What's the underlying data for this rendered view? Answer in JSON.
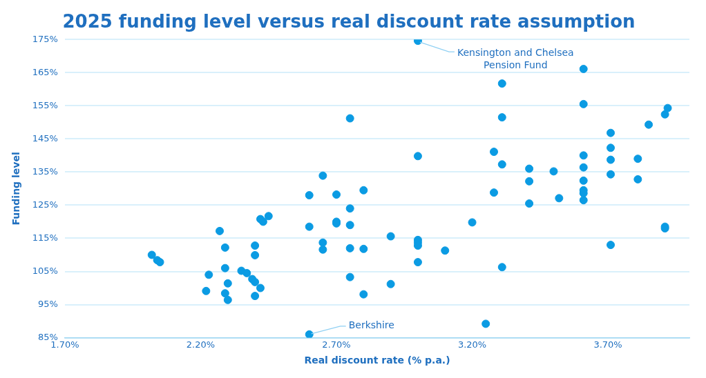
{
  "chart_data": {
    "type": "scatter",
    "title": "2025 funding level versus real discount rate assumption",
    "xlabel": "Real discount rate (% p.a.)",
    "ylabel": "Funding level",
    "xlim": [
      1.7,
      4.0
    ],
    "xticks": [
      {
        "value": 1.7,
        "label": "1.70%"
      },
      {
        "value": 2.2,
        "label": "2.20%"
      },
      {
        "value": 2.7,
        "label": "2.70%"
      },
      {
        "value": 3.2,
        "label": "3.20%"
      },
      {
        "value": 3.7,
        "label": "3.70%"
      }
    ],
    "ylim": [
      85,
      175
    ],
    "yticks": [
      {
        "value": 85,
        "label": "85%"
      },
      {
        "value": 95,
        "label": "95%"
      },
      {
        "value": 105,
        "label": "105%"
      },
      {
        "value": 115,
        "label": "115%"
      },
      {
        "value": 125,
        "label": "125%"
      },
      {
        "value": 135,
        "label": "135%"
      },
      {
        "value": 145,
        "label": "145%"
      },
      {
        "value": 155,
        "label": "155%"
      },
      {
        "value": 165,
        "label": "165%"
      },
      {
        "value": 175,
        "label": "175%"
      }
    ],
    "grid": "y",
    "legend": false,
    "marker": "circle",
    "series": [
      {
        "color": "#0b9be3",
        "x": [
          2.02,
          2.04,
          2.05,
          2.22,
          2.23,
          2.27,
          2.29,
          2.29,
          2.3,
          2.29,
          2.3,
          2.35,
          2.37,
          2.39,
          2.4,
          2.4,
          2.4,
          2.4,
          2.42,
          2.43,
          2.45,
          2.42,
          2.6,
          2.6,
          2.6,
          2.65,
          2.65,
          2.65,
          2.7,
          2.7,
          2.7,
          2.75,
          2.75,
          2.75,
          2.75,
          2.75,
          2.8,
          2.8,
          2.8,
          2.9,
          2.9,
          3.0,
          3.0,
          3.0,
          3.0,
          3.0,
          3.0,
          3.1,
          3.2,
          3.25,
          3.28,
          3.28,
          3.31,
          3.31,
          3.31,
          3.31,
          3.41,
          3.41,
          3.41,
          3.5,
          3.52,
          3.61,
          3.61,
          3.61,
          3.61,
          3.61,
          3.61,
          3.61,
          3.61,
          3.71,
          3.71,
          3.71,
          3.71,
          3.71,
          3.81,
          3.81,
          3.85,
          3.91,
          3.92,
          3.91,
          3.91
        ],
        "values": [
          110,
          108.4,
          107.8,
          99.1,
          104,
          117.2,
          112.2,
          106,
          101.4,
          98.4,
          96.4,
          105.2,
          104.5,
          102.7,
          101.8,
          112.8,
          109.9,
          97.6,
          120.8,
          120,
          121.7,
          100,
          128,
          118.5,
          86,
          133.9,
          113.7,
          111.6,
          128.2,
          120,
          119.5,
          151.2,
          124,
          119,
          112,
          103.3,
          129.5,
          111.8,
          98.1,
          115.6,
          101.2,
          139.8,
          174.6,
          114.5,
          113.7,
          112.8,
          107.8,
          111.3,
          119.8,
          89.2,
          141.1,
          128.8,
          161.7,
          151.5,
          137.3,
          106.3,
          136,
          132.2,
          125.5,
          135.2,
          127.1,
          166.1,
          155.5,
          140,
          136.4,
          132.4,
          129.5,
          128.6,
          126.5,
          146.8,
          142.3,
          138.7,
          134.3,
          113,
          139,
          132.8,
          149.3,
          152.4,
          154.3,
          118.5,
          118
        ]
      }
    ],
    "annotations": [
      {
        "text": "Kensington and Chelsea Pension Fund",
        "x": 3.0,
        "y": 174.6
      },
      {
        "text": "Berkshire",
        "x": 2.6,
        "y": 86
      }
    ]
  }
}
